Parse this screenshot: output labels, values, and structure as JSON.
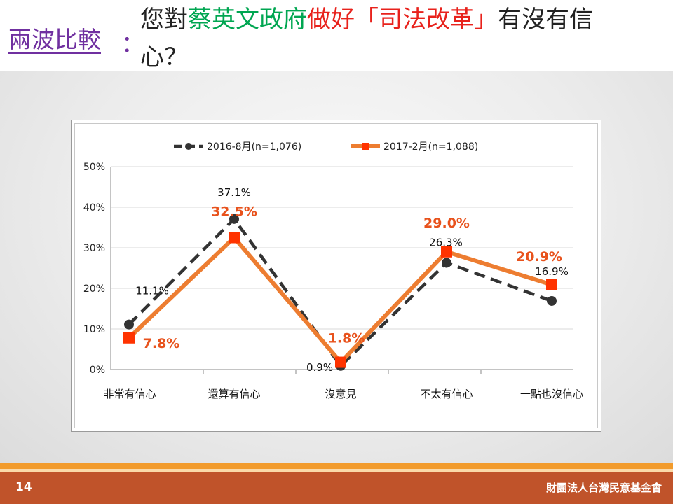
{
  "header": {
    "section_label": "兩波比較",
    "colon": "：",
    "title_pre": "您對",
    "title_green": "蔡英文政府",
    "title_red": "做好「司法改革」",
    "title_post": "有沒有信",
    "title_line2": "心？"
  },
  "footer": {
    "page_number": "14",
    "organization": "財團法人台灣民意基金會"
  },
  "colors": {
    "series_a": "#333333",
    "series_b": "#ed7d31",
    "series_b_marker": "#ff3300",
    "series_b_label": "#e8521c",
    "footer_bg": "#c0532a"
  },
  "chart_data": {
    "type": "line",
    "categories": [
      "非常有信心",
      "還算有信心",
      "沒意見",
      "不太有信心",
      "一點也沒信心"
    ],
    "series": [
      {
        "name": "2016-8月(n=1,076)",
        "values": [
          11.1,
          37.1,
          0.9,
          26.3,
          16.9
        ],
        "labels": [
          "11.1%",
          "37.1%",
          "0.9%",
          "26.3%",
          "16.9%"
        ]
      },
      {
        "name": "2017-2月(n=1,088)",
        "values": [
          7.8,
          32.5,
          1.8,
          29.0,
          20.9
        ],
        "labels": [
          "7.8%",
          "32.5%",
          "1.8%",
          "29.0%",
          "20.9%"
        ]
      }
    ],
    "y_ticks": [
      "0%",
      "10%",
      "20%",
      "30%",
      "40%",
      "50%"
    ],
    "ylim": [
      0,
      50
    ],
    "grid": true,
    "legend_position": "top"
  }
}
